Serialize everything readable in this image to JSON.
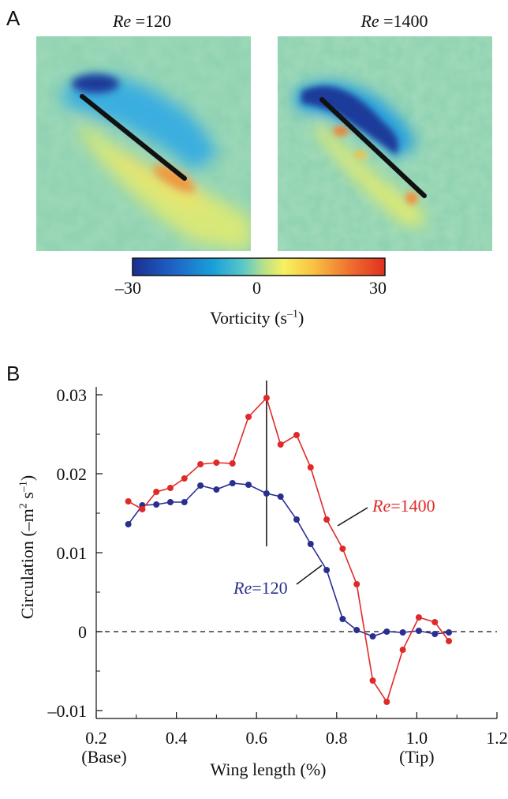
{
  "panel_a": {
    "letter": "A",
    "maps": [
      {
        "title": "Re =120",
        "title_italic": "Re",
        "title_rest": " =120"
      },
      {
        "title": "Re =1400",
        "title_italic": "Re",
        "title_rest": " =1400"
      }
    ],
    "colorbar": {
      "ticks": [
        "–30",
        "0",
        "30"
      ],
      "label": "Vorticity (s–1)",
      "label_main": "Vorticity (s",
      "label_sup": "–1",
      "label_end": ")",
      "colors": [
        "#1a2f8f",
        "#1e5fc4",
        "#1aa0d8",
        "#5cc8c8",
        "#b8e08a",
        "#f8f060",
        "#f8c040",
        "#f07030",
        "#e03020"
      ]
    }
  },
  "panel_b": {
    "letter": "B"
  },
  "chart_data": {
    "type": "line",
    "title": "",
    "xlabel": "Wing length (%)",
    "ylabel_main": "Circulation (–m",
    "ylabel_sup1": "2",
    "ylabel_mid": " s",
    "ylabel_sup2": "–1",
    "ylabel_end": ")",
    "ylabel": "Circulation (–m2 s–1)",
    "xlim": [
      0.2,
      1.2
    ],
    "ylim": [
      -0.011,
      0.031
    ],
    "x_ticks": [
      0.2,
      0.4,
      0.6,
      0.8,
      1.0,
      1.2
    ],
    "x_tick_labels": [
      "0.2",
      "0.4",
      "0.6",
      "0.8",
      "1.0",
      "1.2"
    ],
    "x_sub_labels": [
      {
        "x": 0.2,
        "text": "(Base)"
      },
      {
        "x": 1.0,
        "text": "(Tip)"
      }
    ],
    "y_ticks": [
      -0.01,
      0,
      0.01,
      0.02,
      0.03
    ],
    "y_tick_labels": [
      "–0.01",
      "0",
      "0.01",
      "0.02",
      "0.03"
    ],
    "reference_line_y": 0,
    "vertical_marker_x": 0.625,
    "vertical_marker_y": [
      0.0108,
      0.0318
    ],
    "series": [
      {
        "name": "Re=120",
        "label_italic": "Re",
        "label_rest": "=120",
        "color": "#2a2f8f",
        "x": [
          0.28,
          0.315,
          0.35,
          0.385,
          0.42,
          0.46,
          0.5,
          0.54,
          0.58,
          0.625,
          0.66,
          0.7,
          0.735,
          0.775,
          0.815,
          0.85,
          0.89,
          0.925,
          0.965,
          1.005,
          1.045,
          1.08
        ],
        "y": [
          0.0136,
          0.016,
          0.0161,
          0.0164,
          0.0164,
          0.0185,
          0.018,
          0.0188,
          0.0186,
          0.0175,
          0.0171,
          0.0142,
          0.0111,
          0.0078,
          0.0016,
          0.0002,
          -0.0006,
          0.0,
          -0.0001,
          0.0001,
          -0.0003,
          -0.0001
        ]
      },
      {
        "name": "Re=1400",
        "label_italic": "Re",
        "label_rest": "=1400",
        "color": "#e02a2a",
        "x": [
          0.28,
          0.315,
          0.35,
          0.385,
          0.42,
          0.46,
          0.5,
          0.54,
          0.58,
          0.625,
          0.66,
          0.7,
          0.735,
          0.775,
          0.815,
          0.85,
          0.89,
          0.925,
          0.965,
          1.005,
          1.045,
          1.08
        ],
        "y": [
          0.0165,
          0.0155,
          0.0177,
          0.0182,
          0.0194,
          0.0212,
          0.0214,
          0.0213,
          0.0272,
          0.0296,
          0.0237,
          0.0249,
          0.0208,
          0.0142,
          0.0105,
          0.006,
          -0.0062,
          -0.0089,
          -0.0023,
          0.0018,
          0.0012,
          -0.0012
        ]
      }
    ]
  }
}
